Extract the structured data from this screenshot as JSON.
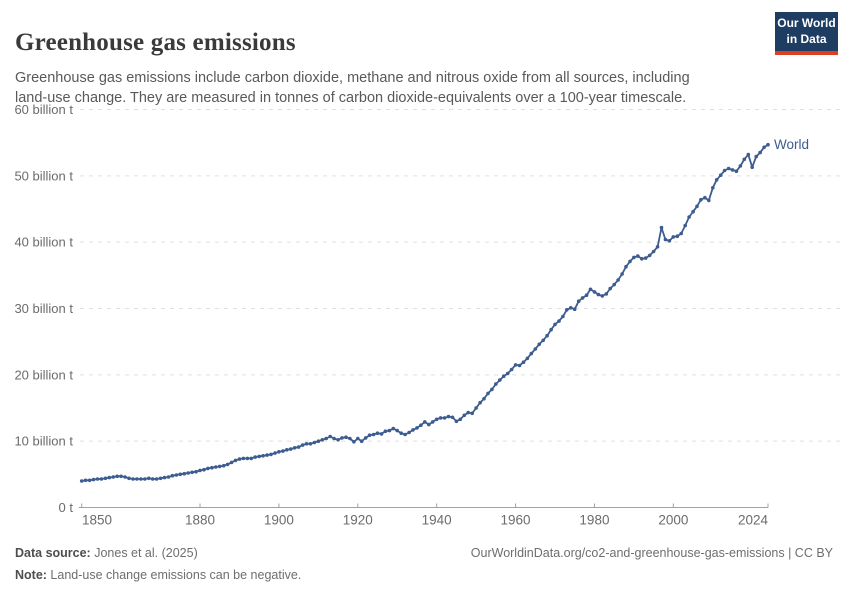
{
  "header": {
    "title": "Greenhouse gas emissions",
    "subtitle": "Greenhouse gas emissions include carbon dioxide, methane and nitrous oxide from all sources, including land-use change. They are measured in tonnes of carbon dioxide-equivalents over a 100-year timescale.",
    "logo": {
      "line1": "Our World",
      "line2": "in Data",
      "bg_color": "#1d3d63",
      "accent_color": "#dc3e26"
    }
  },
  "chart_data": {
    "type": "line",
    "title": "Greenhouse gas emissions",
    "unit": "billion t",
    "xlim": [
      1850,
      2024
    ],
    "ylim": [
      0,
      60
    ],
    "grid": "horizontal-dashed",
    "legend": "end-of-line-label",
    "x_ticks": [
      1850,
      1880,
      1900,
      1920,
      1940,
      1960,
      1980,
      2000,
      2024
    ],
    "y_ticks": [
      0,
      10,
      20,
      30,
      40,
      50,
      60
    ],
    "y_tick_labels": [
      "0 t",
      "10 billion t",
      "20 billion t",
      "30 billion t",
      "40 billion t",
      "50 billion t",
      "60 billion t"
    ],
    "x_start": 1850,
    "series": [
      {
        "name": "World",
        "color": "#3d5c8f",
        "values": [
          4.0,
          4.1,
          4.1,
          4.2,
          4.3,
          4.3,
          4.4,
          4.5,
          4.6,
          4.7,
          4.7,
          4.6,
          4.4,
          4.3,
          4.3,
          4.3,
          4.3,
          4.4,
          4.3,
          4.3,
          4.4,
          4.5,
          4.6,
          4.8,
          4.9,
          5.0,
          5.1,
          5.2,
          5.3,
          5.4,
          5.6,
          5.7,
          5.9,
          6.0,
          6.1,
          6.2,
          6.3,
          6.5,
          6.8,
          7.1,
          7.3,
          7.4,
          7.4,
          7.4,
          7.6,
          7.7,
          7.8,
          7.9,
          8.0,
          8.2,
          8.4,
          8.5,
          8.7,
          8.8,
          9.0,
          9.1,
          9.4,
          9.6,
          9.6,
          9.8,
          10.0,
          10.2,
          10.4,
          10.7,
          10.4,
          10.2,
          10.5,
          10.6,
          10.4,
          9.9,
          10.4,
          10.0,
          10.5,
          10.9,
          11.0,
          11.2,
          11.1,
          11.5,
          11.6,
          11.9,
          11.6,
          11.2,
          11.0,
          11.3,
          11.7,
          12.0,
          12.4,
          12.9,
          12.5,
          12.9,
          13.3,
          13.5,
          13.5,
          13.7,
          13.6,
          13.0,
          13.3,
          13.9,
          14.3,
          14.2,
          15.0,
          15.8,
          16.4,
          17.2,
          17.8,
          18.6,
          19.2,
          19.8,
          20.2,
          20.8,
          21.5,
          21.4,
          21.9,
          22.5,
          23.2,
          23.9,
          24.6,
          25.2,
          25.9,
          26.8,
          27.6,
          28.1,
          28.8,
          29.8,
          30.1,
          29.9,
          31.1,
          31.6,
          32.0,
          32.9,
          32.5,
          32.1,
          31.9,
          32.2,
          33.0,
          33.6,
          34.3,
          35.2,
          36.3,
          37.1,
          37.7,
          37.9,
          37.5,
          37.6,
          38.0,
          38.6,
          39.3,
          42.2,
          40.4,
          40.2,
          40.8,
          40.9,
          41.3,
          42.5,
          43.8,
          44.6,
          45.4,
          46.4,
          46.7,
          46.3,
          48.2,
          49.4,
          50.1,
          50.8,
          51.1,
          50.9,
          50.7,
          51.5,
          52.5,
          53.2,
          51.3,
          52.9,
          53.5,
          54.3,
          54.7
        ]
      }
    ],
    "end_label": "World"
  },
  "footer": {
    "source_label": "Data source:",
    "source_value": " Jones et al. (2025)",
    "note_label": "Note:",
    "note_value": " Land-use change emissions can be negative.",
    "url_text": "OurWorldinData.org/co2-and-greenhouse-gas-emissions | CC BY"
  },
  "colors": {
    "grid": "#e0e0e0",
    "axis": "#a1a1a1",
    "tick_text": "#6b6b6b",
    "series_blue": "#3d5c8f"
  }
}
